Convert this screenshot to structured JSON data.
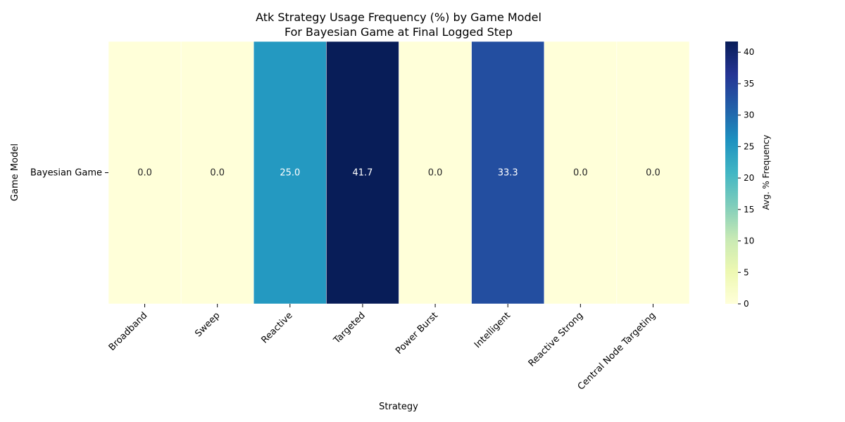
{
  "chart_data": {
    "type": "heatmap",
    "title": "Atk Strategy Usage Frequency (%) by Game Model",
    "subtitle": "For Bayesian Game at Final Logged Step",
    "xlabel": "Strategy",
    "ylabel": "Game Model",
    "x": [
      "Broadband",
      "Sweep",
      "Reactive",
      "Targeted",
      "Power Burst",
      "Intelligent",
      "Reactive Strong",
      "Central Node Targeting"
    ],
    "y": [
      "Bayesian Game"
    ],
    "values": [
      [
        0.0,
        0.0,
        25.0,
        41.7,
        0.0,
        33.3,
        0.0,
        0.0
      ]
    ],
    "colorbar": {
      "label": "Avg. % Frequency",
      "range": [
        0,
        41.7
      ],
      "ticks": [
        0,
        5,
        10,
        15,
        20,
        25,
        30,
        35,
        40
      ],
      "colormap": "YlGnBu"
    },
    "annotation_format": "one decimal"
  }
}
